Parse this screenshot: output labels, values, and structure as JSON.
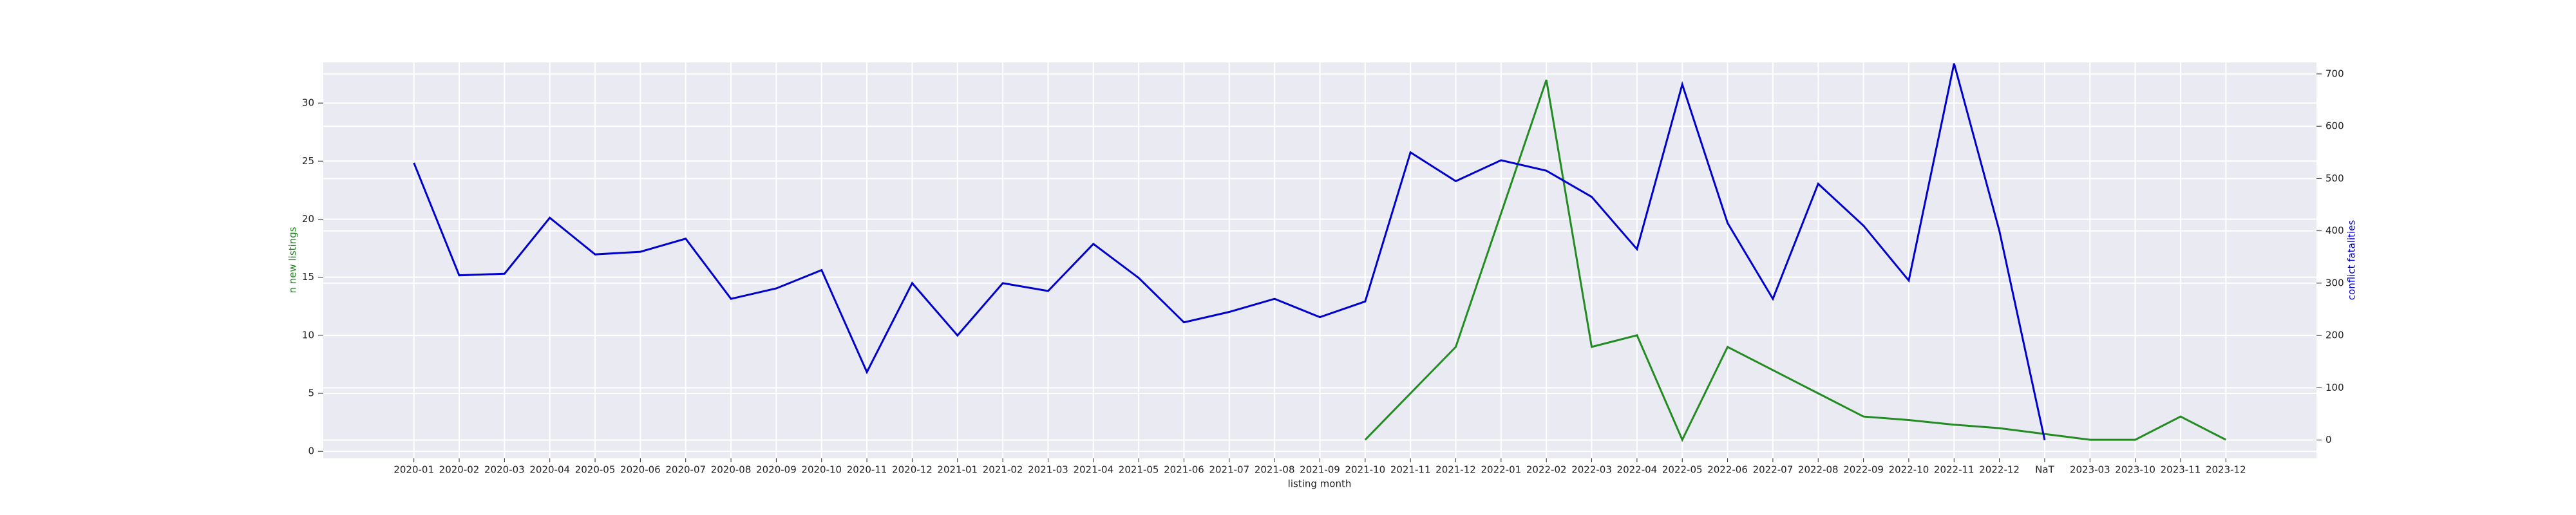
{
  "chart_data": {
    "type": "line",
    "x_label": "listing month",
    "y_label": "n new listings",
    "y2_label": "conflict fatalities",
    "categories": [
      "2020-01",
      "2020-02",
      "2020-03",
      "2020-04",
      "2020-05",
      "2020-06",
      "2020-07",
      "2020-08",
      "2020-09",
      "2020-10",
      "2020-11",
      "2020-12",
      "2021-01",
      "2021-02",
      "2021-03",
      "2021-04",
      "2021-05",
      "2021-06",
      "2021-07",
      "2021-08",
      "2021-09",
      "2021-10",
      "2021-11",
      "2021-12",
      "2022-01",
      "2022-02",
      "2022-03",
      "2022-04",
      "2022-05",
      "2022-06",
      "2022-07",
      "2022-08",
      "2022-09",
      "2022-10",
      "2022-11",
      "2022-12",
      "NaT",
      "2023-03",
      "2023-10",
      "2023-11",
      "2023-12"
    ],
    "series": [
      {
        "name": "n new listings",
        "color": "#228b22",
        "axis": "y",
        "values": [
          null,
          null,
          null,
          null,
          null,
          null,
          null,
          null,
          null,
          null,
          null,
          null,
          null,
          null,
          null,
          null,
          null,
          null,
          null,
          null,
          null,
          1,
          5,
          9,
          20.5,
          32,
          9,
          10,
          1,
          9,
          7,
          5,
          3,
          2.7,
          2.3,
          2,
          1.5,
          1,
          1,
          3,
          1
        ]
      },
      {
        "name": "conflict fatalities",
        "color": "#0000cd",
        "axis": "y2",
        "values": [
          530,
          315,
          318,
          425,
          355,
          360,
          385,
          270,
          290,
          325,
          130,
          300,
          200,
          300,
          285,
          375,
          310,
          225,
          245,
          270,
          235,
          265,
          550,
          495,
          535,
          515,
          465,
          365,
          680,
          415,
          270,
          490,
          410,
          305,
          720,
          400,
          0,
          null,
          null,
          null,
          null
        ]
      }
    ],
    "ylim": [
      -0.6,
      33.5
    ],
    "yticks": [
      0,
      5,
      10,
      15,
      20,
      25,
      30
    ],
    "y2lim": [
      -35,
      722
    ],
    "y2ticks": [
      0,
      100,
      200,
      300,
      400,
      500,
      600,
      700
    ],
    "grid": true
  }
}
